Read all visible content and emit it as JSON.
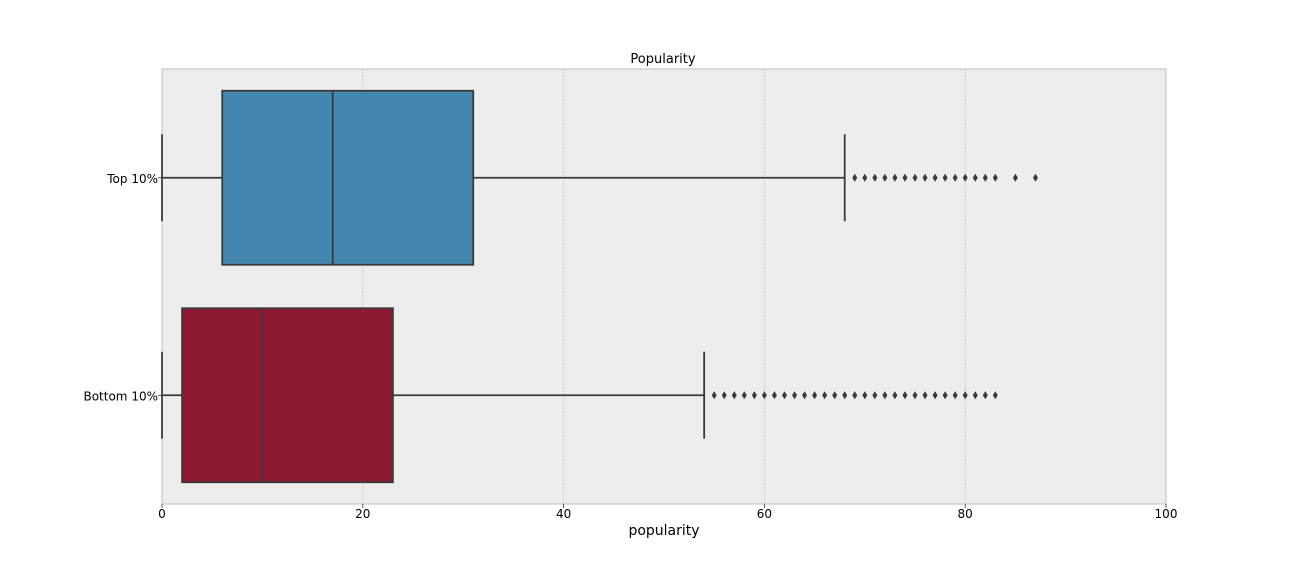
{
  "chart_data": {
    "type": "boxplot",
    "orientation": "horizontal",
    "title": "Popularity",
    "xlabel": "popularity",
    "ylabel": "",
    "xlim": [
      0,
      100
    ],
    "x_ticks": [
      0,
      20,
      40,
      60,
      80,
      100
    ],
    "grid": true,
    "series": [
      {
        "name": "Top 10%",
        "color": "#4387ae",
        "whisker_low": 0,
        "q1": 6,
        "median": 17,
        "q3": 31,
        "whisker_high": 68,
        "outliers": [
          69,
          70,
          71,
          72,
          73,
          74,
          75,
          76,
          77,
          78,
          79,
          80,
          81,
          82,
          83,
          85,
          87
        ]
      },
      {
        "name": "Bottom 10%",
        "color": "#8e1a32",
        "whisker_low": 0,
        "q1": 2,
        "median": 10,
        "q3": 23,
        "whisker_high": 54,
        "outliers": [
          55,
          56,
          57,
          58,
          59,
          60,
          61,
          62,
          63,
          64,
          65,
          66,
          67,
          68,
          69,
          70,
          71,
          72,
          73,
          74,
          75,
          76,
          77,
          78,
          79,
          80,
          81,
          82,
          83
        ]
      }
    ]
  }
}
